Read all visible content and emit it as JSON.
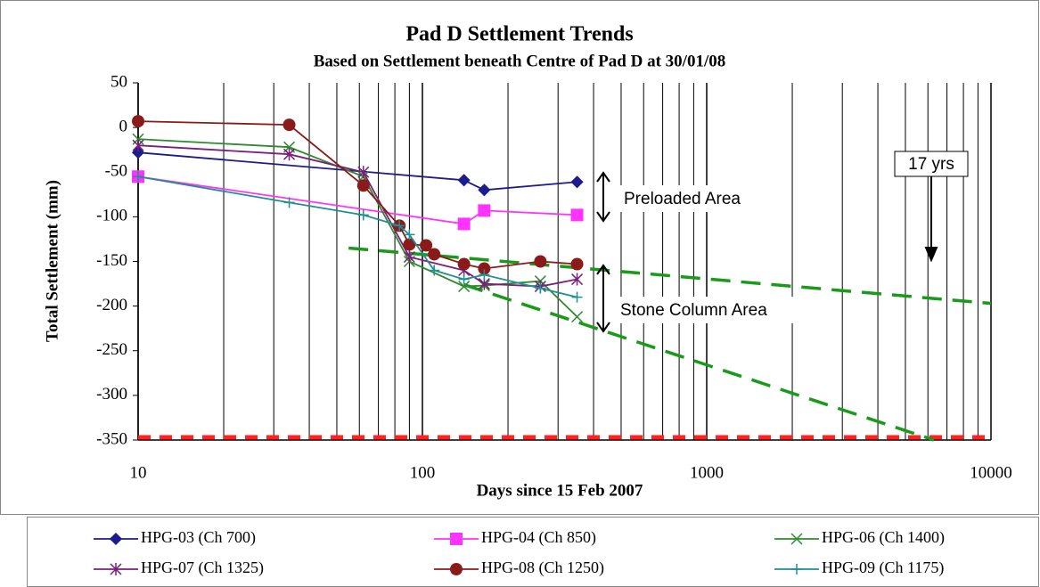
{
  "chart_data": {
    "type": "line",
    "title": "Pad D Settlement Trends",
    "subtitle": "Based on Settlement beneath Centre of Pad D at 30/01/08",
    "x_label": "Days since 15 Feb 2007",
    "y_label": "Total Settlement (mm)",
    "xscale": "log",
    "minor_grid": true,
    "xlim": [
      10,
      10000
    ],
    "xticks": [
      10,
      100,
      1000,
      10000
    ],
    "ylim": [
      -350,
      50
    ],
    "yticks": [
      50,
      0,
      -50,
      -100,
      -150,
      -200,
      -250,
      -300,
      -350
    ],
    "series": [
      {
        "name": "HPG-03 (Ch 700)",
        "color": "#1c1c8c",
        "marker": "diamond",
        "x": [
          10,
          140,
          165,
          350
        ],
        "values": [
          -28,
          -59,
          -70,
          -61
        ]
      },
      {
        "name": "HPG-04 (Ch 850)",
        "color": "#ff33ff",
        "marker": "square",
        "x": [
          10,
          140,
          165,
          350
        ],
        "values": [
          -55,
          -108,
          -93,
          -98
        ]
      },
      {
        "name": "HPG-06 (Ch 1400)",
        "color": "#2e8b2e",
        "marker": "x",
        "x": [
          10,
          34,
          62,
          90,
          140,
          165,
          260,
          350
        ],
        "values": [
          -13,
          -22,
          -55,
          -150,
          -178,
          -177,
          -172,
          -212
        ]
      },
      {
        "name": "HPG-07 (Ch 1325)",
        "color": "#7a1f7a",
        "marker": "star",
        "x": [
          10,
          34,
          62,
          90,
          140,
          165,
          260,
          350
        ],
        "values": [
          -20,
          -30,
          -50,
          -145,
          -160,
          -175,
          -178,
          -170
        ]
      },
      {
        "name": "HPG-08 (Ch 1250)",
        "color": "#8b1a1a",
        "marker": "circle",
        "x": [
          10,
          34,
          62,
          83,
          90,
          103,
          110,
          140,
          165,
          260,
          350
        ],
        "values": [
          7,
          3,
          -65,
          -110,
          -131,
          -132,
          -142,
          -153,
          -158,
          -150,
          -153
        ]
      },
      {
        "name": "HPG-09 (Ch 1175)",
        "color": "#1f8f8f",
        "marker": "plus",
        "x": [
          10,
          34,
          62,
          83,
          90,
          110,
          140,
          165,
          260,
          350
        ],
        "values": [
          -55,
          -84,
          -98,
          -110,
          -120,
          -160,
          -170,
          -165,
          -180,
          -190
        ]
      }
    ],
    "trend_lines": [
      {
        "color": "#1a9a1a",
        "x": [
          55,
          10000
        ],
        "values": [
          -135,
          -197
        ]
      },
      {
        "color": "#1a9a1a",
        "x": [
          140,
          6300
        ],
        "values": [
          -176,
          -350
        ]
      }
    ],
    "reference_line": {
      "value": -347,
      "color": "#ff2020"
    },
    "annotations": [
      "Preloaded Area",
      "Stone Column Area",
      "17 yrs"
    ]
  }
}
